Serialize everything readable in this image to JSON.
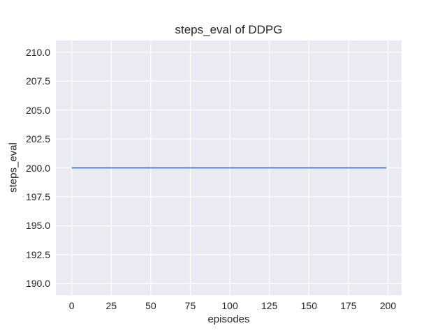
{
  "colors": {
    "figure_background": "#ffffff",
    "axes_background": "#eaeaf2",
    "gridline": "#ffffff",
    "line": "#4c72b0",
    "text": "#262626"
  },
  "chart_data": {
    "type": "line",
    "title": "steps_eval of DDPG",
    "xlabel": "episodes",
    "ylabel": "steps_eval",
    "xlim": [
      -10,
      208.6
    ],
    "ylim": [
      189,
      211
    ],
    "xticks": [
      0,
      25,
      50,
      75,
      100,
      125,
      150,
      175,
      200
    ],
    "xtick_labels": [
      "0",
      "25",
      "50",
      "75",
      "100",
      "125",
      "150",
      "175",
      "200"
    ],
    "yticks": [
      190.0,
      192.5,
      195.0,
      197.5,
      200.0,
      202.5,
      205.0,
      207.5,
      210.0
    ],
    "ytick_labels": [
      "190.0",
      "192.5",
      "195.0",
      "197.5",
      "200.0",
      "202.5",
      "205.0",
      "207.5",
      "210.0"
    ],
    "grid": true,
    "legend_position": "none",
    "series": [
      {
        "name": "DDPG steps_eval",
        "color": "#4c72b0",
        "x": [
          0,
          199
        ],
        "y": [
          200,
          200
        ]
      }
    ]
  }
}
